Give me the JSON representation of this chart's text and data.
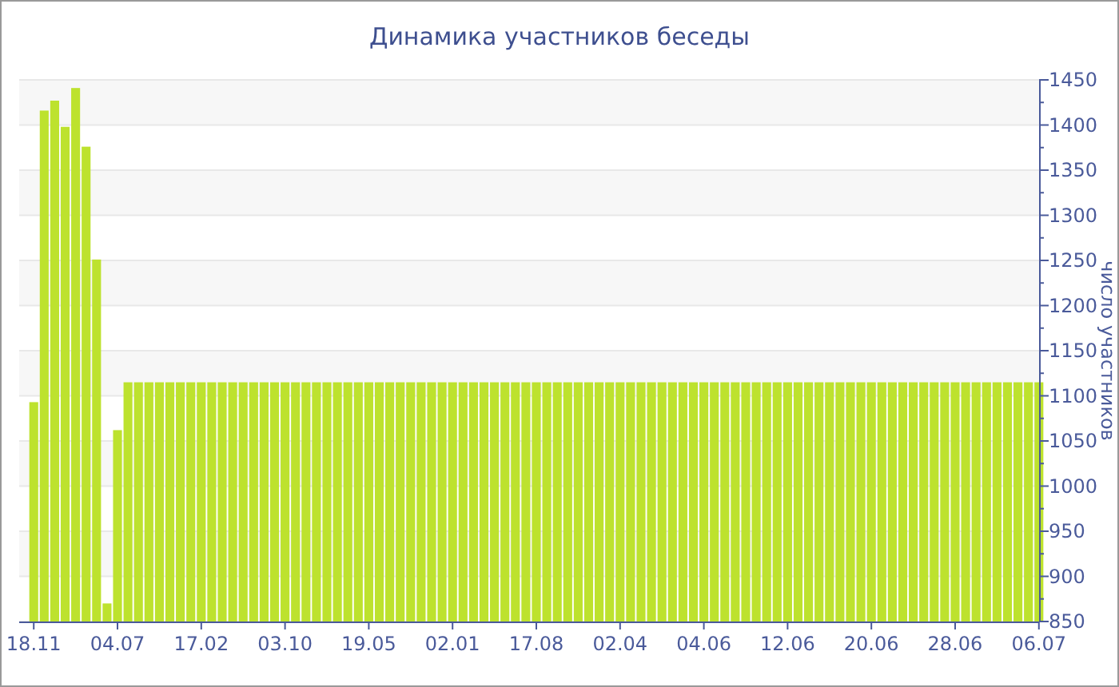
{
  "chart_data": {
    "type": "bar",
    "title": "Динамика участников беседы",
    "ylabel": "число участников",
    "categories": [
      "18.11",
      null,
      null,
      null,
      null,
      null,
      null,
      null,
      "04.07",
      null,
      null,
      null,
      null,
      null,
      null,
      null,
      "17.02",
      null,
      null,
      null,
      null,
      null,
      null,
      null,
      "03.10",
      null,
      null,
      null,
      null,
      null,
      null,
      null,
      "19.05",
      null,
      null,
      null,
      null,
      null,
      null,
      null,
      "02.01",
      null,
      null,
      null,
      null,
      null,
      null,
      null,
      "17.08",
      null,
      null,
      null,
      null,
      null,
      null,
      null,
      "02.04",
      null,
      null,
      null,
      null,
      null,
      null,
      null,
      "04.06",
      null,
      null,
      null,
      null,
      null,
      null,
      null,
      "12.06",
      null,
      null,
      null,
      null,
      null,
      null,
      null,
      "20.06",
      null,
      null,
      null,
      null,
      null,
      null,
      null,
      "28.06",
      null,
      null,
      null,
      null,
      null,
      null,
      null,
      "06.07"
    ],
    "values": [
      1093,
      1416,
      1427,
      1398,
      1441,
      1376,
      1251,
      870,
      1062,
      1115,
      1115,
      1115,
      1115,
      1115,
      1115,
      1115,
      1115,
      1115,
      1115,
      1115,
      1115,
      1115,
      1115,
      1115,
      1115,
      1115,
      1115,
      1115,
      1115,
      1115,
      1115,
      1115,
      1115,
      1115,
      1115,
      1115,
      1115,
      1115,
      1115,
      1115,
      1115,
      1115,
      1115,
      1115,
      1115,
      1115,
      1115,
      1115,
      1115,
      1115,
      1115,
      1115,
      1115,
      1115,
      1115,
      1115,
      1115,
      1115,
      1115,
      1115,
      1115,
      1115,
      1115,
      1115,
      1115,
      1115,
      1115,
      1115,
      1115,
      1115,
      1115,
      1115,
      1115,
      1115,
      1115,
      1115,
      1115,
      1115,
      1115,
      1115,
      1115,
      1115,
      1115,
      1115,
      1115,
      1115,
      1115,
      1115,
      1115,
      1115,
      1115,
      1115,
      1115,
      1115,
      1115,
      1115,
      1115
    ],
    "color": "#bde22e",
    "ylim": [
      850,
      1450
    ],
    "yticks": [
      850,
      900,
      950,
      1000,
      1050,
      1100,
      1150,
      1200,
      1250,
      1300,
      1350,
      1400,
      1450
    ],
    "grid": true
  }
}
